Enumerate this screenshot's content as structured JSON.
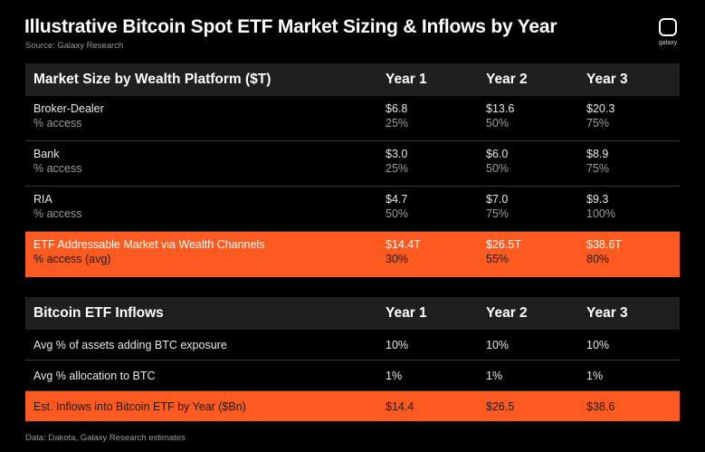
{
  "title": "Illustrative Bitcoin Spot ETF Market Sizing & Inflows by Year",
  "source": "Source: Galaxy Research",
  "logo_text": "galaxy",
  "footer": "Data: Dakota, Galaxy Research estimates",
  "colors": {
    "highlight": "#ff5a1f",
    "header_bg": "#1f1f1f",
    "background": "#000000"
  },
  "table1": {
    "header": [
      "Market Size by Wealth Platform ($T)",
      "Year 1",
      "Year 2",
      "Year 3"
    ],
    "rows": [
      {
        "label": "Broker-Dealer",
        "sublabel": "% access",
        "values": [
          "$6.8",
          "$13.6",
          "$20.3"
        ],
        "subvalues": [
          "25%",
          "50%",
          "75%"
        ]
      },
      {
        "label": "Bank",
        "sublabel": "% access",
        "values": [
          "$3.0",
          "$6.0",
          "$8.9"
        ],
        "subvalues": [
          "25%",
          "50%",
          "75%"
        ]
      },
      {
        "label": "RIA",
        "sublabel": "% access",
        "values": [
          "$4.7",
          "$7.0",
          "$9.3"
        ],
        "subvalues": [
          "50%",
          "75%",
          "100%"
        ]
      },
      {
        "label": "ETF Addressable Market via Wealth Channels",
        "sublabel": "% access (avg)",
        "values": [
          "$14.4T",
          "$26.5T",
          "$38.6T"
        ],
        "subvalues": [
          "30%",
          "55%",
          "80%"
        ]
      }
    ]
  },
  "table2": {
    "header": [
      "Bitcoin ETF Inflows",
      "Year 1",
      "Year 2",
      "Year 3"
    ],
    "rows": [
      {
        "label": "Avg % of assets adding BTC exposure",
        "values": [
          "10%",
          "10%",
          "10%"
        ]
      },
      {
        "label": "Avg % allocation to BTC",
        "values": [
          "1%",
          "1%",
          "1%"
        ]
      },
      {
        "label": "Est. Inflows into Bitcoin ETF by Year ($Bn)",
        "values": [
          "$14.4",
          "$26.5",
          "$38.6"
        ]
      }
    ]
  }
}
